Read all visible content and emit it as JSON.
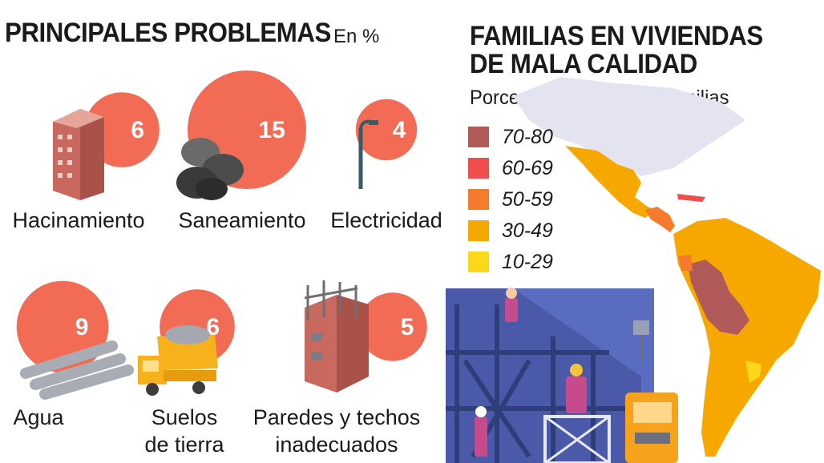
{
  "left_panel": {
    "title": "PRINCIPALES PROBLEMAS",
    "unit": "En %"
  },
  "right_panel": {
    "title_line1": "FAMILIAS EN VIVIENDAS",
    "title_line2": "DE MALA CALIDAD",
    "subtitle": "Porcentaje del total de familias"
  },
  "colors": {
    "bubble": "#f26b55",
    "legend_70_80": "#b05a5a",
    "legend_60_69": "#f04e4e",
    "legend_50_59": "#f47a2e",
    "legend_30_49": "#f7a800",
    "legend_10_29": "#fcd81a"
  },
  "chart_data": [
    {
      "type": "bubble",
      "categories": [
        "Hacinamiento",
        "Saneamiento",
        "Electricidad",
        "Agua",
        "Suelos de tierra",
        "Paredes y techos inadecuados"
      ],
      "category_lines": [
        [
          "Hacinamiento"
        ],
        [
          "Saneamiento"
        ],
        [
          "Electricidad"
        ],
        [
          "Agua"
        ],
        [
          "Suelos",
          "de tierra"
        ],
        [
          "Paredes y techos",
          "inadecuados"
        ]
      ],
      "values": [
        6,
        15,
        4,
        9,
        6,
        5
      ],
      "icons": [
        "apartment-building-icon",
        "sewer-pipes-icon",
        "street-lamp-icon",
        "water-pipes-icon",
        "dump-truck-icon",
        "construction-building-icon"
      ]
    },
    {
      "type": "choropleth-legend",
      "title": "FAMILIAS EN VIVIENDAS DE MALA CALIDAD",
      "subtitle": "Porcentaje del total de familias",
      "legend": [
        "70-80",
        "60-69",
        "50-59",
        "30-49",
        "10-29"
      ]
    }
  ]
}
